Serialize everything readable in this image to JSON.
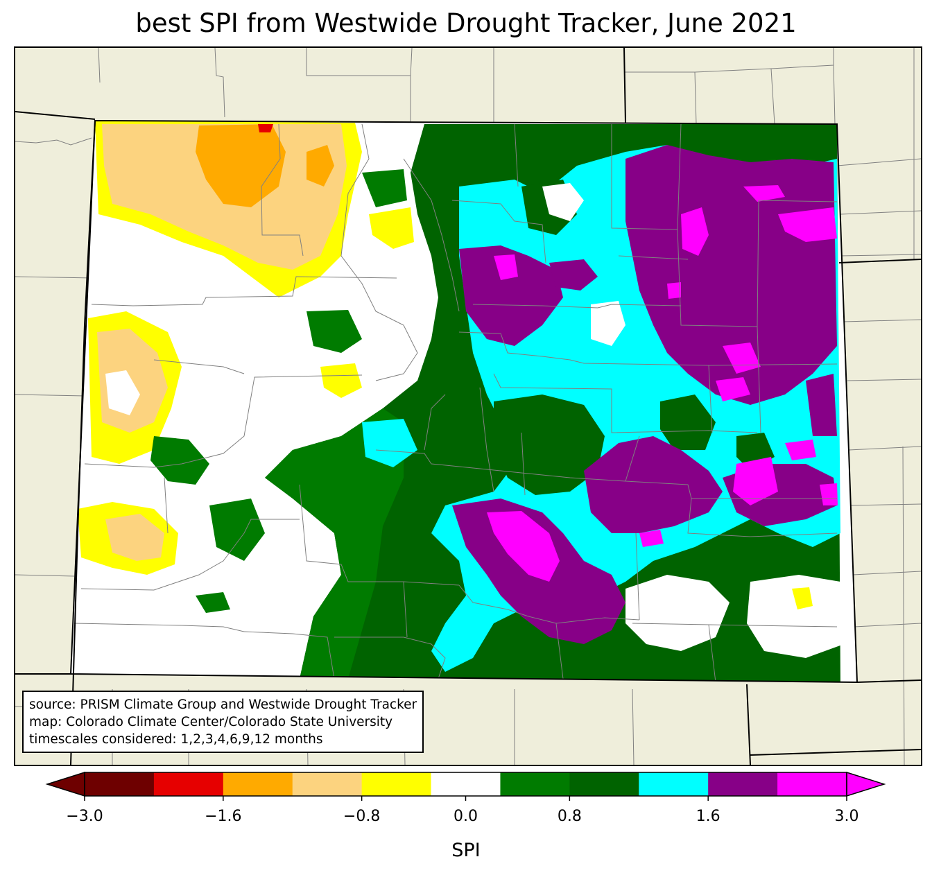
{
  "title": "best SPI from Westwide Drought Tracker, June 2021",
  "source_lines": [
    "source: PRISM Climate Group and Westwide Drought Tracker",
    "map: Colorado Climate Center/Colorado State University",
    "timescales considered: 1,2,3,4,6,9,12 months"
  ],
  "colorbar": {
    "label": "SPI",
    "range": [
      -3.0,
      3.0
    ],
    "extend": "both",
    "bins": [
      {
        "min": -3.0,
        "max": -2.4,
        "color": "#6e0000"
      },
      {
        "min": -2.4,
        "max": -1.6,
        "color": "#e60000"
      },
      {
        "min": -1.6,
        "max": -1.2,
        "color": "#ffaa00"
      },
      {
        "min": -1.2,
        "max": -0.8,
        "color": "#fcd37f"
      },
      {
        "min": -0.8,
        "max": -0.4,
        "color": "#ffff00"
      },
      {
        "min": -0.4,
        "max": 0.4,
        "color": "#ffffff"
      },
      {
        "min": 0.4,
        "max": 0.8,
        "color": "#007b00"
      },
      {
        "min": 0.8,
        "max": 1.2,
        "color": "#006300"
      },
      {
        "min": 1.2,
        "max": 1.6,
        "color": "#00ffff"
      },
      {
        "min": 1.6,
        "max": 2.4,
        "color": "#870087"
      },
      {
        "min": 2.4,
        "max": 3.0,
        "color": "#ff00ff"
      }
    ],
    "ticks": [
      "−3.0",
      "−1.6",
      "−0.8",
      "0.0",
      "0.8",
      "1.6",
      "3.0"
    ],
    "tick_values": [
      -3.0,
      -1.6,
      -0.8,
      0.0,
      0.8,
      1.6,
      3.0
    ],
    "low_end_color": "#6e0000",
    "high_end_color": "#ff00ff"
  },
  "colors": {
    "land_outside": "#efeedb",
    "state_border": "#000000",
    "county_border": "#808080"
  }
}
